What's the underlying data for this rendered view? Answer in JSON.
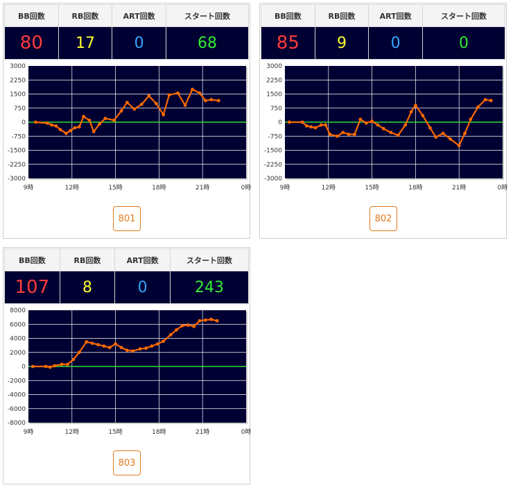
{
  "headers": {
    "bb": "BB回数",
    "rb": "RB回数",
    "art": "ART回数",
    "start": "スタート回数"
  },
  "colors": {
    "bb": "#ff3b3b",
    "rb": "#ffff33",
    "art": "#33a6ff",
    "start": "#33ee33",
    "plot_bg": "#000033",
    "line": "#ff6a00",
    "zero_line": "#33dd33",
    "button": "#e07a1d"
  },
  "machines": [
    {
      "button_label": "801",
      "bb": "80",
      "rb": "17",
      "art": "0",
      "start": "68",
      "chart_data": {
        "type": "line",
        "x_ticks": [
          "9時",
          "12時",
          "15時",
          "18時",
          "21時",
          "0時"
        ],
        "y_ticks": [
          "3000",
          "2250",
          "1500",
          "750",
          "0",
          "-750",
          "-1500",
          "-2250",
          "-3000"
        ],
        "xlim": [
          9,
          24
        ],
        "ylim": [
          -3000,
          3000
        ],
        "series": [
          {
            "x": [
              9.5,
              10.3,
              10.6,
              10.9,
              11.2,
              11.6,
              11.9,
              12.2,
              12.5,
              12.8,
              13.2,
              13.5,
              13.9,
              14.3,
              14.9,
              15.4,
              15.8,
              16.3,
              16.8,
              17.3,
              17.8,
              18.3,
              18.7,
              19.3,
              19.8,
              20.3,
              20.8,
              21.2,
              21.6,
              22.1
            ],
            "y": [
              0,
              -50,
              -150,
              -200,
              -400,
              -600,
              -450,
              -300,
              -250,
              300,
              100,
              -500,
              -100,
              200,
              100,
              600,
              1050,
              700,
              950,
              1400,
              1000,
              400,
              1450,
              1550,
              900,
              1750,
              1550,
              1150,
              1200,
              1150
            ]
          }
        ]
      }
    },
    {
      "button_label": "802",
      "bb": "85",
      "rb": "9",
      "art": "0",
      "start": "0",
      "chart_data": {
        "type": "line",
        "x_ticks": [
          "9時",
          "12時",
          "15時",
          "18時",
          "21時",
          "0時"
        ],
        "y_ticks": [
          "3000",
          "2250",
          "1500",
          "750",
          "0",
          "-750",
          "-1500",
          "-2250",
          "-3000"
        ],
        "xlim": [
          9,
          24
        ],
        "ylim": [
          -3000,
          3000
        ],
        "series": [
          {
            "x": [
              9.3,
              10.2,
              10.5,
              10.8,
              11.1,
              11.5,
              11.8,
              12.1,
              12.6,
              13.0,
              13.4,
              13.8,
              14.2,
              14.6,
              15.0,
              15.4,
              15.8,
              16.3,
              16.8,
              17.3,
              17.7,
              18.0,
              18.5,
              19.0,
              19.4,
              19.9,
              20.4,
              21.0,
              21.4,
              21.8,
              22.3,
              22.8,
              23.2
            ],
            "y": [
              0,
              0,
              -200,
              -250,
              -300,
              -150,
              -150,
              -650,
              -750,
              -550,
              -650,
              -650,
              150,
              -50,
              50,
              -150,
              -350,
              -550,
              -700,
              -150,
              550,
              900,
              350,
              -300,
              -800,
              -600,
              -900,
              -1250,
              -600,
              150,
              800,
              1200,
              1150
            ]
          }
        ]
      }
    },
    {
      "button_label": "803",
      "bb": "107",
      "rb": "8",
      "art": "0",
      "start": "243",
      "chart_data": {
        "type": "line",
        "x_ticks": [
          "9時",
          "12時",
          "15時",
          "18時",
          "21時",
          "0時"
        ],
        "y_ticks": [
          "8000",
          "6000",
          "4000",
          "2000",
          "0",
          "-2000",
          "-4000",
          "-6000",
          "-8000"
        ],
        "xlim": [
          9,
          24
        ],
        "ylim": [
          -8000,
          8000
        ],
        "series": [
          {
            "x": [
              9.3,
              10.2,
              10.5,
              10.8,
              11.3,
              11.7,
              12.1,
              12.5,
              13.0,
              13.4,
              13.8,
              14.2,
              14.6,
              15.0,
              15.4,
              15.8,
              16.2,
              16.7,
              17.1,
              17.5,
              17.9,
              18.3,
              18.8,
              19.2,
              19.6,
              20.0,
              20.4,
              20.8,
              21.2,
              21.6,
              22.0
            ],
            "y": [
              0,
              0,
              -100,
              100,
              300,
              300,
              1000,
              2000,
              3500,
              3300,
              3100,
              2900,
              2700,
              3200,
              2700,
              2300,
              2200,
              2500,
              2600,
              2900,
              3200,
              3600,
              4500,
              5200,
              5800,
              5900,
              5700,
              6500,
              6600,
              6700,
              6500
            ]
          }
        ]
      }
    }
  ]
}
